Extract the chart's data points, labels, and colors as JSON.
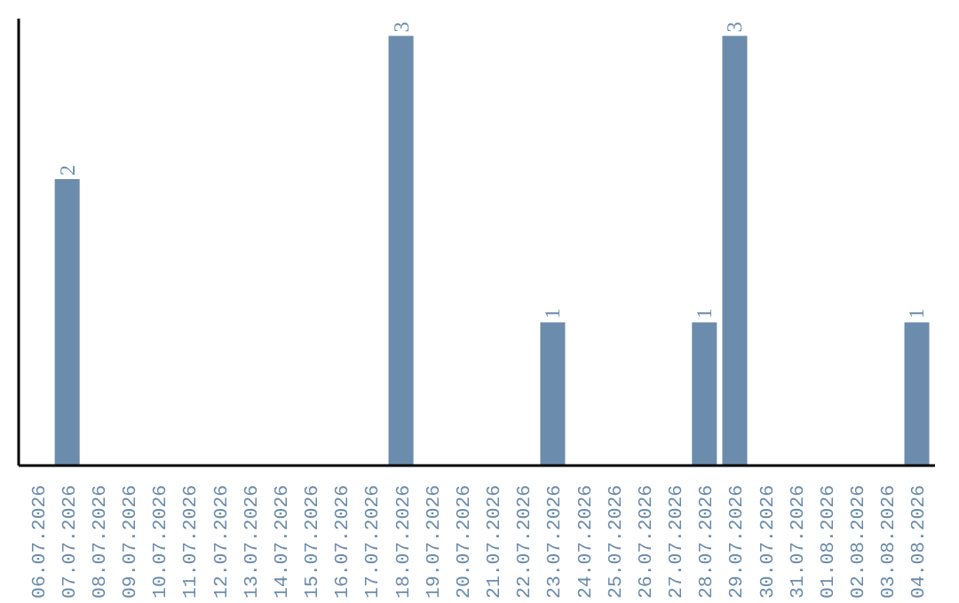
{
  "chart_data": {
    "type": "bar",
    "categories": [
      "06.07.2026",
      "07.07.2026",
      "08.07.2026",
      "09.07.2026",
      "10.07.2026",
      "11.07.2026",
      "12.07.2026",
      "13.07.2026",
      "14.07.2026",
      "15.07.2026",
      "16.07.2026",
      "17.07.2026",
      "18.07.2026",
      "19.07.2026",
      "20.07.2026",
      "21.07.2026",
      "22.07.2026",
      "23.07.2026",
      "24.07.2026",
      "25.07.2026",
      "26.07.2026",
      "27.07.2026",
      "28.07.2026",
      "29.07.2026",
      "30.07.2026",
      "31.07.2026",
      "01.08.2026",
      "02.08.2026",
      "03.08.2026",
      "04.08.2026"
    ],
    "values": [
      0,
      2,
      0,
      0,
      0,
      0,
      0,
      0,
      0,
      0,
      0,
      0,
      3,
      0,
      0,
      0,
      0,
      1,
      0,
      0,
      0,
      0,
      1,
      3,
      0,
      0,
      0,
      0,
      0,
      1
    ],
    "value_labels": [
      null,
      "2",
      null,
      null,
      null,
      null,
      null,
      null,
      null,
      null,
      null,
      null,
      "3",
      null,
      null,
      null,
      null,
      "1",
      null,
      null,
      null,
      null,
      "1",
      "3",
      null,
      null,
      null,
      null,
      null,
      "1"
    ],
    "color": "#6b8cac",
    "tick_labels": "x",
    "grid": false
  }
}
